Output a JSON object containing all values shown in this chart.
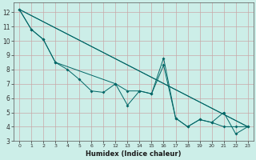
{
  "xlabel": "Humidex (Indice chaleur)",
  "bg_color": "#cceee8",
  "grid_color": "#c8a8a8",
  "line_color": "#006666",
  "ylim": [
    3,
    12.7
  ],
  "yticks": [
    3,
    4,
    5,
    6,
    7,
    8,
    9,
    10,
    11,
    12
  ],
  "xtick_labels": [
    "0",
    "1",
    "2",
    "3",
    "4",
    "5",
    "6",
    "7",
    "12",
    "13",
    "14",
    "15",
    "16",
    "17",
    "18",
    "19",
    "20",
    "21",
    "22",
    "23"
  ],
  "series": [
    {
      "xidx": [
        0,
        1,
        2,
        3,
        4,
        5,
        6,
        7,
        8,
        9,
        10,
        11,
        12,
        13,
        14,
        15,
        16,
        17,
        18,
        19
      ],
      "y": [
        12.2,
        10.8,
        10.1,
        8.5,
        8.0,
        7.3,
        6.5,
        6.4,
        7.0,
        5.5,
        6.5,
        6.3,
        8.8,
        4.6,
        4.0,
        4.5,
        4.3,
        5.0,
        3.5,
        4.0
      ]
    },
    {
      "xidx": [
        0,
        1,
        2,
        3,
        8,
        9,
        10,
        11,
        12,
        13,
        14,
        15,
        16,
        17,
        18,
        19
      ],
      "y": [
        12.2,
        10.8,
        10.1,
        8.5,
        7.0,
        6.5,
        6.5,
        6.3,
        8.3,
        4.6,
        4.0,
        4.5,
        4.3,
        4.0,
        4.0,
        4.0
      ]
    },
    {
      "xidx": [
        0,
        19
      ],
      "y": [
        12.2,
        4.0
      ]
    },
    {
      "xidx": [
        0,
        19
      ],
      "y": [
        12.2,
        4.0
      ]
    }
  ]
}
